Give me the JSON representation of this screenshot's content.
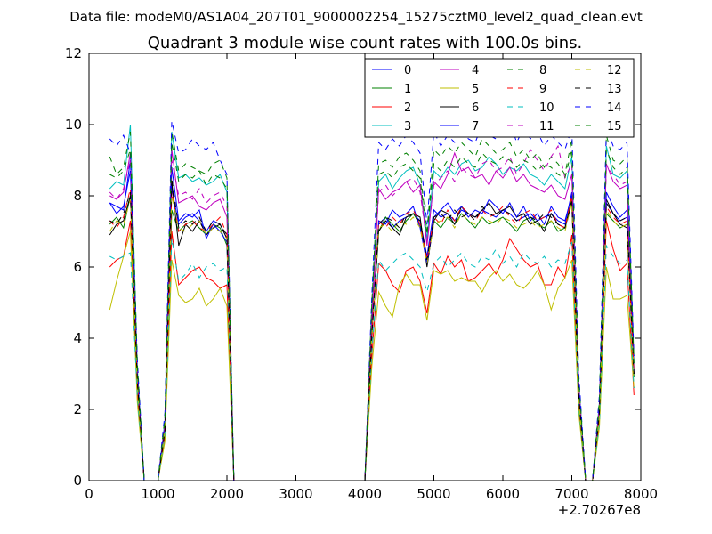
{
  "suptitle": "Data file: modeM0/AS1A04_207T01_9000002254_15275cztM0_level2_quad_clean.evt",
  "chart_data": {
    "type": "line",
    "title": "Quadrant 3 module wise count rates with 100.0s bins.",
    "xlabel": "",
    "ylabel": "",
    "xlim": [
      0,
      8000
    ],
    "ylim": [
      0,
      12
    ],
    "x_offset_label": "+2.70267e8",
    "x_ticks": [
      "0",
      "1000",
      "2000",
      "3000",
      "4000",
      "5000",
      "6000",
      "7000",
      "8000"
    ],
    "y_ticks": [
      "0",
      "2",
      "4",
      "6",
      "8",
      "10",
      "12"
    ],
    "grid": false,
    "legend_position": "top-right",
    "legend_columns": 4,
    "x": [
      300,
      400,
      500,
      600,
      700,
      800,
      900,
      1000,
      1100,
      1200,
      1300,
      1400,
      1500,
      1600,
      1700,
      1800,
      1900,
      2000,
      2100,
      2200,
      4000,
      4100,
      4200,
      4300,
      4400,
      4500,
      4600,
      4700,
      4800,
      4900,
      5000,
      5100,
      5200,
      5300,
      5400,
      5500,
      5600,
      5700,
      5800,
      5900,
      6000,
      6100,
      6200,
      6300,
      6400,
      6500,
      6600,
      6700,
      6800,
      6900,
      7000,
      7100,
      7200,
      7300,
      7400,
      7500,
      7600,
      7700,
      7800,
      7900
    ],
    "series": [
      {
        "name": "0",
        "color": "#0000ff",
        "dash": "solid",
        "values": [
          7.8,
          7.7,
          7.6,
          9.0,
          3.0,
          0,
          0,
          0,
          1.5,
          8.2,
          7.2,
          7.4,
          7.5,
          7.3,
          7.0,
          7.3,
          7.2,
          6.8,
          0,
          0,
          0,
          4.2,
          7.2,
          7.4,
          7.1,
          7.3,
          7.4,
          7.5,
          7.3,
          6.3,
          7.6,
          7.4,
          7.5,
          7.3,
          7.6,
          7.5,
          7.4,
          7.6,
          7.5,
          7.4,
          7.6,
          7.5,
          7.3,
          7.4,
          7.5,
          7.3,
          7.4,
          7.5,
          7.3,
          7.2,
          8.1,
          2.5,
          0,
          0,
          2.0,
          7.8,
          7.5,
          7.3,
          7.4,
          3.0
        ]
      },
      {
        "name": "1",
        "color": "#008000",
        "dash": "solid",
        "values": [
          7.2,
          7.4,
          7.1,
          8.0,
          2.9,
          0,
          0,
          0,
          1.4,
          7.6,
          7.0,
          7.2,
          7.3,
          7.1,
          6.9,
          7.2,
          7.1,
          6.6,
          0,
          0,
          0,
          4.0,
          7.0,
          7.4,
          7.2,
          7.0,
          7.3,
          7.5,
          7.2,
          6.2,
          7.3,
          7.1,
          7.4,
          7.2,
          7.5,
          7.3,
          7.1,
          7.4,
          7.2,
          7.3,
          7.4,
          7.2,
          7.0,
          7.3,
          7.4,
          7.2,
          7.1,
          7.3,
          7.0,
          7.1,
          7.9,
          2.4,
          0,
          0,
          1.9,
          7.5,
          7.3,
          7.1,
          7.2,
          2.9
        ]
      },
      {
        "name": "2",
        "color": "#ff0000",
        "dash": "solid",
        "values": [
          6.0,
          6.2,
          6.3,
          7.3,
          2.5,
          0,
          0,
          0,
          1.2,
          7.0,
          5.5,
          5.7,
          5.9,
          6.0,
          5.7,
          5.6,
          5.4,
          5.5,
          0,
          0,
          0,
          3.5,
          6.1,
          5.9,
          5.5,
          5.3,
          5.9,
          6.0,
          5.6,
          4.7,
          6.1,
          5.8,
          6.3,
          6.0,
          6.2,
          5.6,
          5.7,
          5.9,
          6.1,
          5.8,
          6.2,
          6.8,
          6.5,
          6.2,
          6.0,
          6.1,
          5.5,
          5.5,
          6.0,
          5.7,
          6.9,
          2.2,
          0,
          0,
          1.7,
          7.3,
          6.5,
          5.9,
          6.1,
          2.4
        ]
      },
      {
        "name": "3",
        "color": "#00bfbf",
        "dash": "solid",
        "values": [
          8.2,
          8.4,
          8.3,
          10.0,
          3.2,
          0,
          0,
          0,
          1.7,
          9.8,
          8.5,
          8.6,
          8.4,
          8.5,
          8.3,
          8.4,
          8.6,
          8.1,
          0,
          0,
          0,
          4.8,
          8.4,
          8.6,
          8.2,
          8.5,
          8.7,
          8.8,
          8.3,
          6.8,
          8.7,
          8.5,
          8.8,
          8.6,
          8.9,
          9.0,
          8.7,
          8.8,
          9.1,
          8.9,
          8.6,
          8.8,
          8.7,
          8.9,
          8.6,
          8.5,
          8.3,
          8.6,
          8.4,
          8.2,
          9.1,
          2.8,
          0,
          0,
          2.2,
          9.4,
          8.6,
          8.5,
          8.7,
          3.3
        ]
      },
      {
        "name": "4",
        "color": "#bf00bf",
        "dash": "solid",
        "values": [
          8.0,
          7.9,
          8.1,
          9.2,
          3.0,
          0,
          0,
          0,
          1.6,
          9.3,
          7.8,
          7.9,
          8.0,
          7.7,
          7.6,
          7.8,
          7.9,
          7.4,
          0,
          0,
          0,
          4.5,
          8.2,
          7.9,
          8.1,
          8.2,
          8.4,
          8.1,
          8.3,
          6.6,
          8.4,
          8.2,
          8.6,
          9.2,
          8.7,
          8.8,
          8.5,
          8.6,
          8.3,
          8.7,
          8.5,
          8.8,
          8.4,
          8.6,
          8.3,
          8.2,
          8.1,
          8.3,
          8.0,
          7.9,
          8.6,
          2.6,
          0,
          0,
          2.1,
          8.9,
          8.4,
          8.2,
          8.3,
          3.1
        ]
      },
      {
        "name": "5",
        "color": "#bfbf00",
        "dash": "solid",
        "values": [
          4.8,
          5.6,
          6.3,
          7.0,
          2.2,
          0,
          0,
          0,
          1.1,
          6.2,
          5.2,
          5.0,
          5.1,
          5.4,
          4.9,
          5.1,
          5.4,
          4.9,
          0,
          0,
          0,
          3.2,
          5.3,
          4.9,
          4.6,
          5.5,
          5.8,
          5.5,
          5.5,
          4.5,
          5.9,
          5.8,
          5.9,
          5.6,
          5.7,
          5.6,
          5.6,
          5.3,
          5.7,
          5.9,
          5.6,
          5.8,
          5.5,
          5.4,
          5.6,
          5.9,
          5.5,
          4.8,
          5.4,
          5.7,
          6.2,
          1.9,
          0,
          0,
          1.5,
          6.0,
          5.1,
          5.1,
          5.2,
          2.6
        ]
      },
      {
        "name": "6",
        "color": "#000000",
        "dash": "solid",
        "values": [
          6.9,
          7.2,
          7.3,
          8.0,
          2.8,
          0,
          0,
          0,
          1.4,
          8.4,
          6.6,
          7.2,
          7.0,
          7.3,
          6.9,
          7.1,
          7.2,
          6.8,
          0,
          0,
          0,
          4.0,
          7.0,
          7.3,
          7.1,
          6.9,
          7.4,
          7.5,
          7.4,
          6.0,
          7.3,
          7.6,
          7.5,
          7.2,
          7.7,
          7.5,
          7.4,
          7.6,
          7.8,
          7.5,
          7.6,
          7.7,
          7.4,
          7.5,
          7.2,
          7.3,
          7.0,
          7.5,
          7.2,
          7.1,
          7.8,
          2.3,
          0,
          0,
          1.9,
          7.9,
          7.5,
          7.2,
          7.1,
          3.0
        ]
      },
      {
        "name": "7",
        "color": "#0000ff",
        "dash": "solid",
        "values": [
          7.8,
          7.5,
          7.7,
          8.7,
          3.0,
          0,
          0,
          0,
          1.5,
          8.8,
          7.3,
          7.5,
          7.4,
          7.6,
          6.8,
          7.2,
          7.0,
          6.7,
          0,
          0,
          0,
          4.1,
          7.3,
          7.2,
          7.6,
          7.4,
          7.5,
          7.7,
          7.1,
          6.1,
          7.4,
          7.6,
          7.8,
          7.5,
          7.7,
          7.4,
          7.6,
          7.5,
          7.9,
          7.7,
          7.5,
          7.8,
          7.4,
          7.7,
          7.3,
          7.5,
          7.2,
          7.7,
          7.4,
          7.3,
          8.0,
          2.5,
          0,
          0,
          2.0,
          8.1,
          7.7,
          7.4,
          7.6,
          3.1
        ]
      },
      {
        "name": "8",
        "color": "#008000",
        "dash": "dashed",
        "values": [
          9.1,
          8.6,
          8.8,
          9.8,
          3.3,
          0,
          0,
          0,
          1.8,
          9.8,
          8.7,
          8.9,
          8.8,
          8.7,
          8.6,
          8.9,
          9.0,
          8.5,
          0,
          0,
          0,
          5.0,
          8.9,
          9.0,
          8.8,
          9.1,
          9.2,
          9.0,
          8.7,
          7.0,
          9.3,
          9.1,
          9.4,
          9.2,
          9.5,
          9.3,
          9.1,
          9.6,
          9.4,
          9.2,
          9.3,
          9.5,
          9.1,
          9.3,
          9.0,
          9.2,
          8.8,
          9.1,
          8.9,
          8.6,
          9.6,
          2.9,
          0,
          0,
          2.3,
          9.7,
          9.0,
          8.9,
          9.1,
          3.4
        ]
      },
      {
        "name": "9",
        "color": "#ff0000",
        "dash": "dashed",
        "values": [
          7.3,
          7.1,
          7.4,
          8.2,
          2.8,
          0,
          0,
          0,
          1.4,
          8.1,
          7.0,
          7.2,
          7.3,
          7.1,
          7.0,
          7.2,
          7.4,
          6.9,
          0,
          0,
          0,
          4.1,
          7.3,
          7.1,
          7.4,
          7.2,
          7.5,
          7.6,
          7.2,
          6.2,
          7.4,
          7.2,
          7.6,
          7.3,
          7.7,
          7.5,
          7.3,
          7.6,
          7.4,
          7.5,
          7.7,
          7.4,
          7.2,
          7.5,
          7.6,
          7.3,
          7.4,
          7.6,
          7.2,
          7.1,
          8.0,
          2.4,
          0,
          0,
          1.9,
          7.7,
          7.4,
          7.2,
          7.3,
          3.0
        ]
      },
      {
        "name": "10",
        "color": "#00bfbf",
        "dash": "dashed",
        "values": [
          6.3,
          6.2,
          6.3,
          6.4,
          2.4,
          0,
          0,
          0,
          1.3,
          6.8,
          5.6,
          5.8,
          6.1,
          5.7,
          6.0,
          6.1,
          5.9,
          6.0,
          0,
          0,
          0,
          3.6,
          6.2,
          5.9,
          6.1,
          6.3,
          6.4,
          6.2,
          6.0,
          5.3,
          6.1,
          6.3,
          6.0,
          6.2,
          6.4,
          6.1,
          6.0,
          6.3,
          6.2,
          6.5,
          6.1,
          6.3,
          6.0,
          6.4,
          6.2,
          6.1,
          6.3,
          6.0,
          6.2,
          6.1,
          6.7,
          2.1,
          0,
          0,
          1.6,
          6.6,
          6.3,
          6.1,
          6.2,
          2.6
        ]
      },
      {
        "name": "11",
        "color": "#bf00bf",
        "dash": "dashed",
        "values": [
          8.1,
          7.9,
          8.2,
          9.0,
          3.0,
          0,
          0,
          0,
          1.6,
          9.0,
          8.0,
          8.1,
          7.9,
          8.2,
          7.8,
          8.0,
          8.1,
          7.7,
          0,
          0,
          0,
          4.6,
          8.1,
          8.3,
          8.0,
          8.2,
          8.4,
          8.5,
          8.1,
          6.7,
          8.3,
          8.5,
          8.7,
          8.4,
          8.8,
          8.6,
          8.5,
          8.9,
          9.0,
          8.7,
          8.8,
          9.1,
          8.6,
          8.9,
          9.3,
          9.0,
          8.7,
          9.1,
          9.4,
          8.5,
          8.9,
          2.7,
          0,
          0,
          2.1,
          8.8,
          8.6,
          8.3,
          8.4,
          3.2
        ]
      },
      {
        "name": "12",
        "color": "#bfbf00",
        "dash": "dashed",
        "values": [
          7.0,
          7.3,
          7.2,
          7.9,
          2.7,
          0,
          0,
          0,
          1.4,
          8.0,
          7.1,
          7.0,
          7.2,
          7.3,
          6.9,
          7.1,
          7.0,
          6.8,
          0,
          0,
          0,
          4.0,
          7.1,
          7.2,
          7.0,
          7.3,
          7.2,
          7.4,
          7.1,
          6.1,
          7.2,
          7.3,
          7.4,
          7.1,
          7.5,
          7.3,
          7.2,
          7.4,
          7.3,
          7.2,
          7.4,
          7.3,
          7.1,
          7.2,
          7.3,
          7.1,
          7.2,
          7.3,
          7.1,
          7.0,
          7.8,
          2.3,
          0,
          0,
          1.8,
          7.6,
          7.3,
          7.1,
          7.2,
          2.9
        ]
      },
      {
        "name": "13",
        "color": "#000000",
        "dash": "dashed",
        "values": [
          7.3,
          7.2,
          7.5,
          8.1,
          2.8,
          0,
          0,
          0,
          1.4,
          8.5,
          7.1,
          7.3,
          7.2,
          7.4,
          7.0,
          7.3,
          7.2,
          6.9,
          0,
          0,
          0,
          4.1,
          7.2,
          7.4,
          7.3,
          7.1,
          7.5,
          7.4,
          7.3,
          6.2,
          7.4,
          7.5,
          7.3,
          7.6,
          7.4,
          7.5,
          7.3,
          7.7,
          7.5,
          7.4,
          7.6,
          7.5,
          7.3,
          7.5,
          7.4,
          7.3,
          7.5,
          7.4,
          7.2,
          7.1,
          7.9,
          2.4,
          0,
          0,
          1.9,
          7.8,
          7.5,
          7.3,
          7.4,
          3.0
        ]
      },
      {
        "name": "14",
        "color": "#0000ff",
        "dash": "dashed",
        "values": [
          9.6,
          9.4,
          9.7,
          9.2,
          3.4,
          0,
          0,
          0,
          1.9,
          10.1,
          9.2,
          9.3,
          9.6,
          9.4,
          9.3,
          9.5,
          9.0,
          8.6,
          0,
          0,
          0,
          5.2,
          9.5,
          9.3,
          9.6,
          9.4,
          9.7,
          9.5,
          9.2,
          7.2,
          9.8,
          9.4,
          9.7,
          9.5,
          9.9,
          9.6,
          9.5,
          10.0,
          9.7,
          9.6,
          9.8,
          10.1,
          9.5,
          9.9,
          9.6,
          9.8,
          9.4,
          9.7,
          9.5,
          9.3,
          9.9,
          3.0,
          0,
          0,
          2.4,
          9.9,
          9.4,
          9.3,
          9.5,
          3.5
        ]
      },
      {
        "name": "15",
        "color": "#008000",
        "dash": "dashed",
        "values": [
          8.6,
          8.5,
          8.7,
          9.3,
          3.2,
          0,
          0,
          0,
          1.7,
          9.5,
          8.4,
          8.6,
          8.5,
          8.7,
          8.3,
          8.6,
          8.5,
          8.2,
          0,
          0,
          0,
          4.8,
          8.6,
          8.7,
          8.5,
          8.8,
          8.9,
          8.7,
          8.5,
          6.9,
          8.9,
          8.7,
          9.0,
          8.8,
          9.1,
          8.9,
          8.8,
          9.2,
          9.0,
          8.9,
          9.1,
          9.0,
          8.8,
          9.0,
          8.9,
          8.7,
          8.9,
          8.8,
          8.6,
          8.5,
          9.3,
          2.8,
          0,
          0,
          2.2,
          9.3,
          8.8,
          8.6,
          8.8,
          3.3
        ]
      }
    ]
  }
}
